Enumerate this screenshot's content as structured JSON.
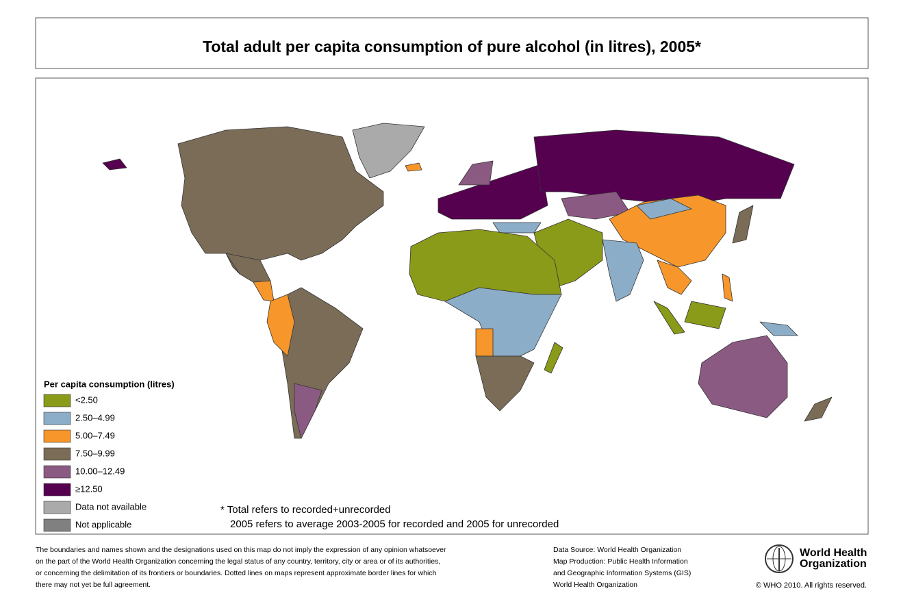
{
  "title": "Total adult per capita consumption of pure alcohol (in litres), 2005*",
  "legend": {
    "title": "Per capita consumption (litres)",
    "items": [
      {
        "label": "<2.50",
        "color": "#8a9a19"
      },
      {
        "label": "2.50–4.99",
        "color": "#8cadc8"
      },
      {
        "label": "5.00–7.49",
        "color": "#f7962a"
      },
      {
        "label": "7.50–9.99",
        "color": "#7a6c57"
      },
      {
        "label": "10.00–12.49",
        "color": "#8b5a82"
      },
      {
        "label": "≥12.50",
        "color": "#560050"
      },
      {
        "label": "Data not available",
        "color": "#aaaaaa"
      },
      {
        "label": "Not applicable",
        "color": "#808080"
      }
    ]
  },
  "footnote": [
    "* Total refers to recorded+unrecorded",
    "2005 refers to average 2003-2005 for recorded and 2005 for unrecorded"
  ],
  "disclaimer": [
    "The boundaries and names shown and the designations used on this map do not imply the expression of any opinion whatsoever",
    "on the part of the World Health Organization concerning the legal status of any country, territory, city or area or of its authorities,",
    "or concerning the delimitation of its frontiers or boundaries.  Dotted lines on maps represent approximate border lines for which",
    "there may not yet be full agreement."
  ],
  "source": [
    "Data Source: World Health Organization",
    "Map Production: Public Health Information",
    "and Geographic Information Systems (GIS)",
    "World Health Organization"
  ],
  "organization": [
    "World Health",
    "Organization"
  ],
  "copyright": "© WHO 2010. All rights reserved."
}
